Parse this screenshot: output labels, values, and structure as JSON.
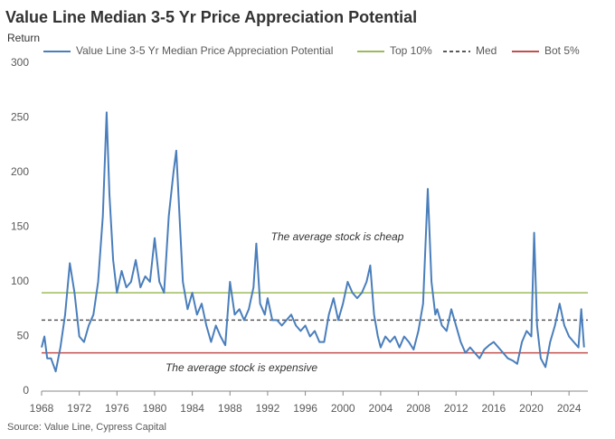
{
  "chart_data": {
    "type": "line",
    "title": "Value Line Median 3-5 Yr Price Appreciation Potential",
    "y_label": "Return",
    "source": "Source: Value Line, Cypress Capital",
    "annotations": [
      "The average stock is cheap",
      "The average stock is expensive"
    ],
    "xlim": [
      1968,
      2026
    ],
    "xticks": [
      1968,
      1972,
      1976,
      1980,
      1984,
      1988,
      1992,
      1996,
      2000,
      2004,
      2008,
      2012,
      2016,
      2020,
      2024
    ],
    "ylim": [
      0,
      300
    ],
    "yticks": [
      0,
      50,
      100,
      150,
      200,
      250,
      300
    ],
    "grid": false,
    "series": [
      {
        "name": "Value Line 3-5 Yr Median Price Appreciation Potential",
        "color": "#4a7ebb",
        "x": [
          1968,
          1968.3,
          1968.6,
          1969,
          1969.5,
          1970,
          1970.5,
          1971,
          1971.5,
          1972,
          1972.5,
          1973,
          1973.5,
          1974,
          1974.5,
          1974.9,
          1975.2,
          1975.6,
          1976,
          1976.5,
          1977,
          1977.5,
          1978,
          1978.5,
          1979,
          1979.5,
          1980,
          1980.5,
          1981,
          1981.5,
          1982,
          1982.3,
          1982.7,
          1983,
          1983.5,
          1984,
          1984.5,
          1985,
          1985.5,
          1986,
          1986.5,
          1987,
          1987.5,
          1988,
          1988.5,
          1989,
          1989.5,
          1990,
          1990.5,
          1990.8,
          1991.2,
          1991.7,
          1992,
          1992.5,
          1993,
          1993.5,
          1994,
          1994.5,
          1995,
          1995.5,
          1996,
          1996.5,
          1997,
          1997.5,
          1998,
          1998.5,
          1999,
          1999.5,
          2000,
          2000.5,
          2001,
          2001.5,
          2002,
          2002.5,
          2002.9,
          2003.3,
          2003.7,
          2004,
          2004.5,
          2005,
          2005.5,
          2006,
          2006.5,
          2007,
          2007.5,
          2008,
          2008.5,
          2009,
          2009.4,
          2009.8,
          2010,
          2010.5,
          2011,
          2011.5,
          2012,
          2012.5,
          2013,
          2013.5,
          2014,
          2014.5,
          2015,
          2015.5,
          2016,
          2016.5,
          2017,
          2017.5,
          2018,
          2018.5,
          2019,
          2019.5,
          2020,
          2020.3,
          2020.6,
          2021,
          2021.5,
          2022,
          2022.5,
          2023,
          2023.5,
          2024,
          2024.5,
          2025,
          2025.3,
          2025.6
        ],
        "values": [
          40,
          50,
          30,
          30,
          18,
          40,
          70,
          117,
          90,
          50,
          45,
          60,
          70,
          100,
          160,
          255,
          180,
          120,
          90,
          110,
          95,
          100,
          120,
          95,
          105,
          100,
          140,
          100,
          90,
          160,
          200,
          220,
          150,
          100,
          75,
          90,
          70,
          80,
          60,
          45,
          60,
          50,
          42,
          100,
          70,
          75,
          65,
          75,
          95,
          135,
          80,
          70,
          85,
          65,
          65,
          60,
          65,
          70,
          60,
          55,
          60,
          50,
          55,
          45,
          45,
          70,
          85,
          65,
          80,
          100,
          90,
          85,
          90,
          100,
          115,
          70,
          50,
          40,
          50,
          45,
          50,
          40,
          50,
          45,
          38,
          55,
          80,
          185,
          100,
          70,
          75,
          60,
          55,
          75,
          60,
          45,
          35,
          40,
          35,
          30,
          38,
          42,
          45,
          40,
          35,
          30,
          28,
          25,
          45,
          55,
          50,
          145,
          60,
          30,
          22,
          45,
          60,
          80,
          60,
          50,
          45,
          40,
          75,
          40
        ]
      }
    ],
    "reference_lines": [
      {
        "name": "Top 10%",
        "color": "#9bbb59",
        "value": 90,
        "dash": false
      },
      {
        "name": "Med",
        "color": "#595959",
        "value": 65,
        "dash": true
      },
      {
        "name": "Bot 5%",
        "color": "#c0504d",
        "value": 35,
        "dash": false
      }
    ]
  }
}
